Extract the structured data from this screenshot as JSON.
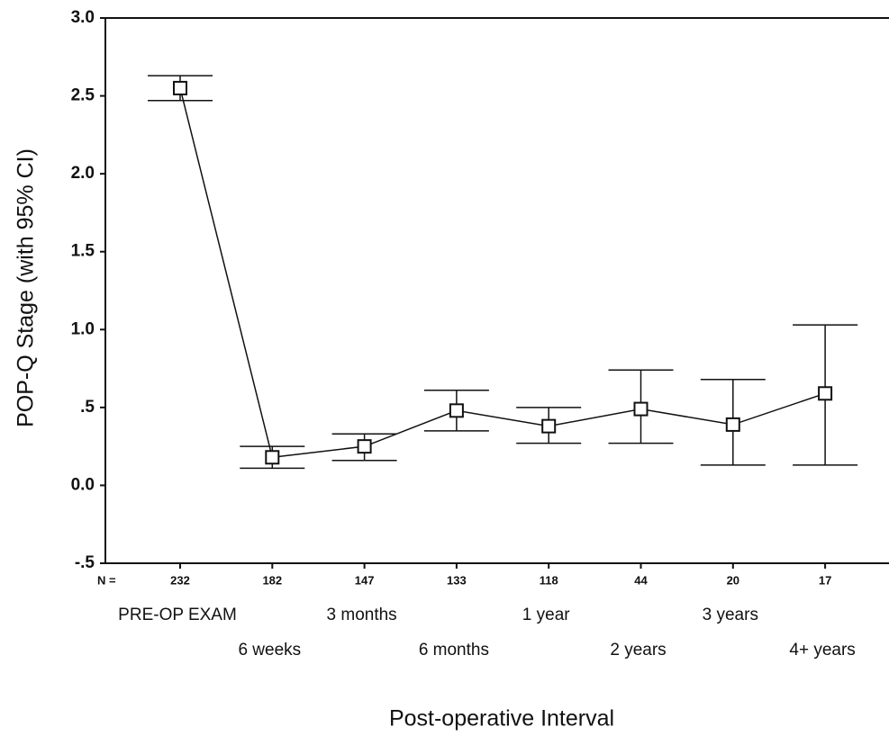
{
  "chart_data": {
    "type": "line",
    "x_label": "Post-operative Interval",
    "y_label": "POP-Q Stage (with 95% CI)",
    "n_label": "N =",
    "categories": [
      "PRE-OP EXAM",
      "6 weeks",
      "3 months",
      "6 months",
      "1 year",
      "2 years",
      "3 years",
      "4+ years"
    ],
    "n": [
      232,
      182,
      147,
      133,
      118,
      44,
      20,
      17
    ],
    "series": [
      {
        "name": "POP-Q Stage",
        "color": "#111111",
        "values": [
          2.55,
          0.18,
          0.25,
          0.48,
          0.38,
          0.49,
          0.39,
          0.59
        ],
        "ci_low": [
          2.47,
          0.11,
          0.16,
          0.35,
          0.27,
          0.27,
          0.13,
          0.13
        ],
        "ci_high": [
          2.63,
          0.25,
          0.33,
          0.61,
          0.5,
          0.74,
          0.68,
          1.03
        ]
      }
    ],
    "ylim": [
      -0.5,
      3.0
    ],
    "yticks": [
      {
        "value": -0.5,
        "label": "-.5"
      },
      {
        "value": 0,
        "label": "0.0"
      },
      {
        "value": 0.5,
        "label": ".5"
      },
      {
        "value": 1,
        "label": "1.0"
      },
      {
        "value": 1.5,
        "label": "1.5"
      },
      {
        "value": 2,
        "label": "2.0"
      },
      {
        "value": 2.5,
        "label": "2.5"
      },
      {
        "value": 3,
        "label": "3.0"
      }
    ]
  }
}
